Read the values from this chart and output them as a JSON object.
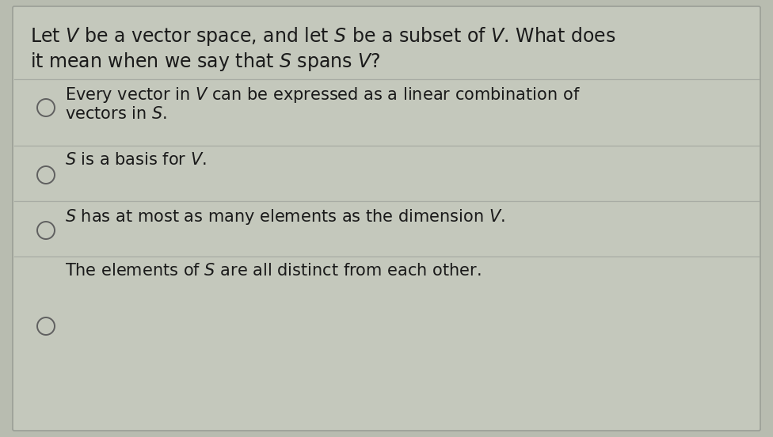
{
  "background_color": "#b8bcb0",
  "card_color": "#c4c8bc",
  "border_color": "#9a9e96",
  "divider_color": "#a8ac a4",
  "text_color": "#1a1a1a",
  "circle_color": "#606060",
  "font_size_question": 17,
  "font_size_options": 15,
  "question_line1": "Let $\\mathit{V}$ be a vector space, and let $\\mathit{S}$ be a subset of $\\mathit{V}$. What does",
  "question_line2": "it mean when we say that $\\mathit{S}$ spans $\\mathit{V}$?",
  "opt1_line1": "Every vector in $\\mathit{V}$ can be expressed as a linear combination of",
  "opt1_line2": "vectors in $\\mathit{S}$.",
  "opt2": "$\\mathit{S}$ is a basis for $\\mathit{V}$.",
  "opt3": "$\\mathit{S}$ has at most as many elements as the dimension $\\mathit{V}$.",
  "opt4": "The elements of $\\mathit{S}$ are all distinct from each other."
}
